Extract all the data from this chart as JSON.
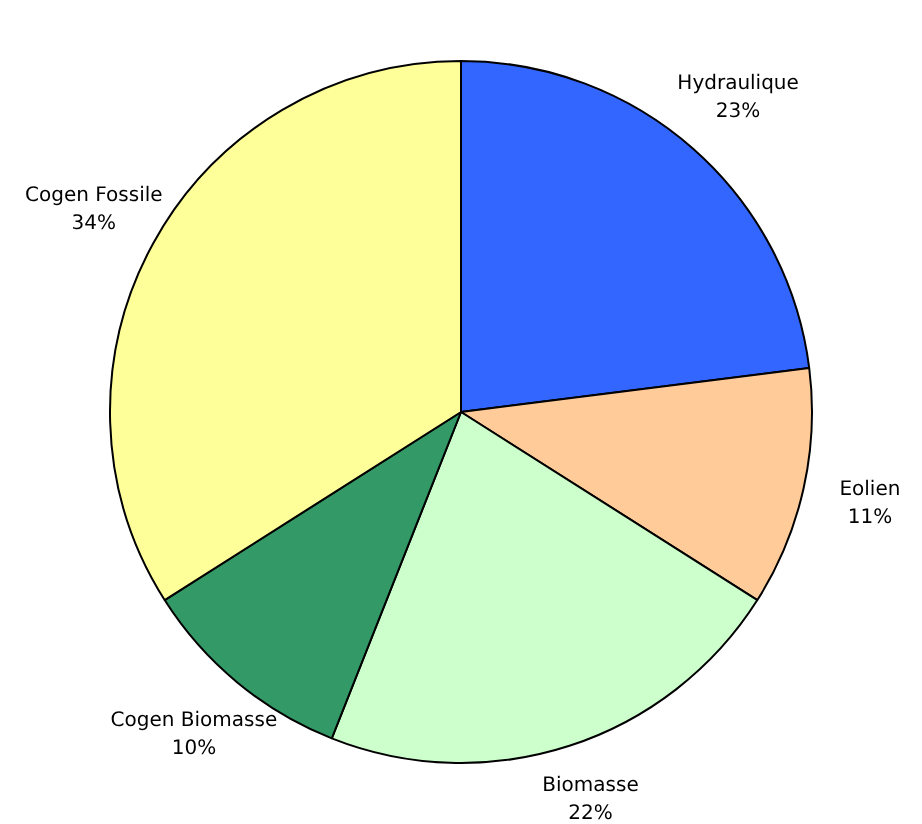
{
  "chart_data": {
    "type": "pie",
    "categories": [
      "Hydraulique",
      "Eolien",
      "Biomasse",
      "Cogen Biomasse",
      "Cogen Fossile"
    ],
    "values": [
      23,
      11,
      22,
      10,
      34
    ],
    "colors": [
      "#3366ff",
      "#ffcc99",
      "#ccffcc",
      "#339966",
      "#ffff99"
    ],
    "value_labels": [
      "23%",
      "11%",
      "22%",
      "10%",
      "34%"
    ],
    "legend": false
  }
}
